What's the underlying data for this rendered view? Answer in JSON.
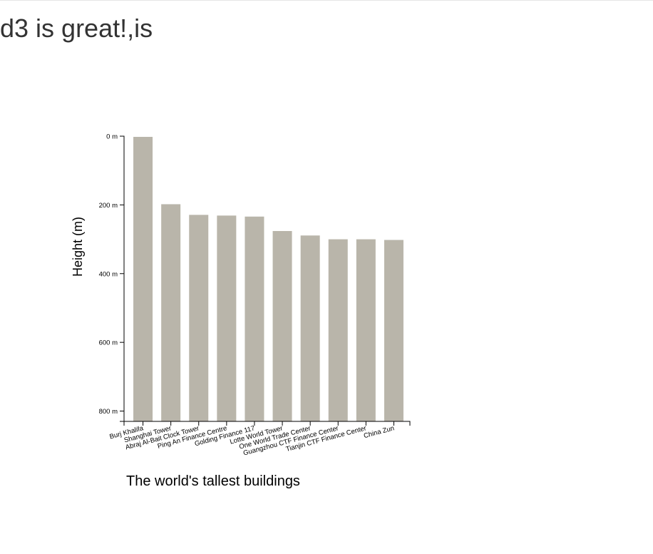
{
  "page": {
    "heading": "d3 is great!,is"
  },
  "chart_data": {
    "type": "bar",
    "title": "The world's tallest buildings",
    "xlabel": "",
    "ylabel": "Height (m)",
    "ylim": [
      0,
      830
    ],
    "y_inverted": true,
    "y_ticks": [
      0,
      200,
      400,
      600,
      800
    ],
    "y_tick_labels": [
      "0 m",
      "200 m",
      "400 m",
      "600 m",
      "800 m"
    ],
    "grid": false,
    "bar_color": "#b9b5aa",
    "categories": [
      "Burj Khalifa",
      "Shanghai Tower",
      "Abraj Al-Bait Clock Tower",
      "Ping An Finance Centre",
      "Golding Finance 117",
      "Lotte World Tower",
      "One World Trade Center",
      "Guangzhou CTF Finance Center",
      "Tianjin CTF Finance Center",
      "China Zun"
    ],
    "values": [
      828,
      632,
      601,
      599,
      596,
      554,
      541,
      530,
      530,
      528
    ]
  }
}
